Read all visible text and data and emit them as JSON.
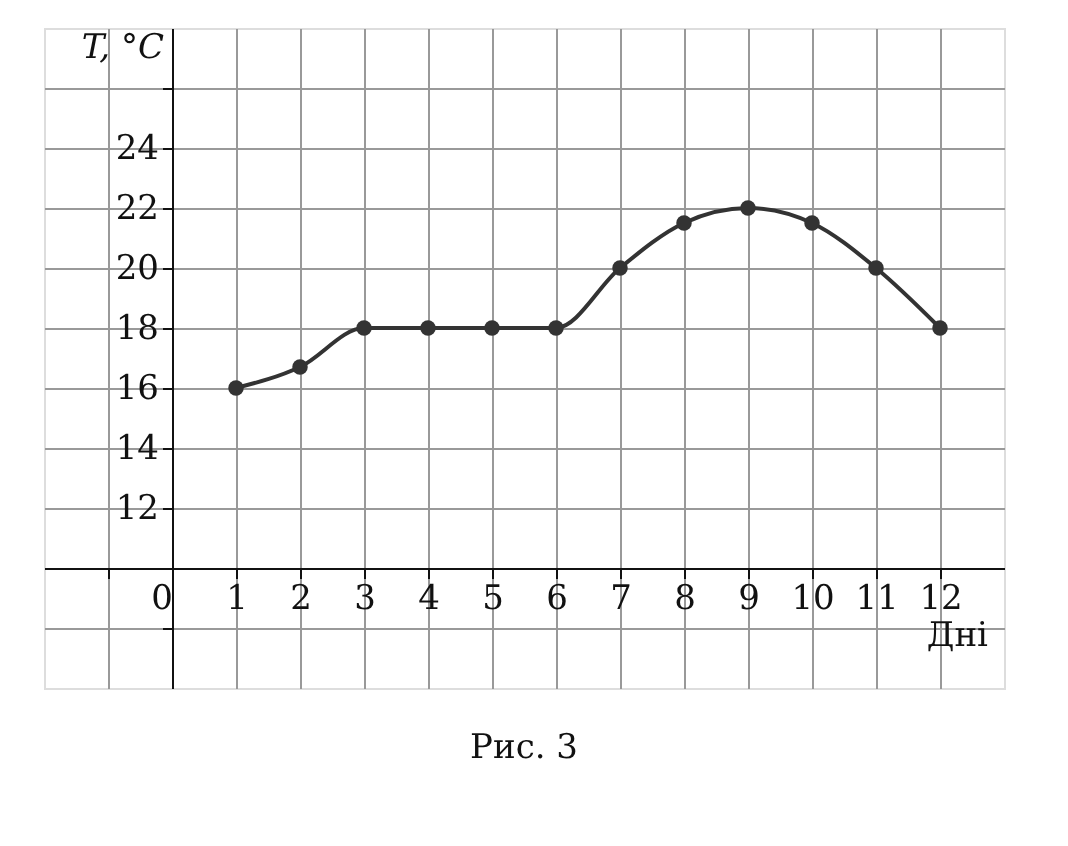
{
  "chart_data": {
    "type": "line",
    "xlabel": "Дні",
    "ylabel": "T, °C",
    "annotations": [
      "Рис. 3"
    ],
    "x": [
      1,
      2,
      3,
      4,
      5,
      6,
      7,
      8,
      9,
      10,
      11,
      12
    ],
    "series": [
      {
        "color": "#333333",
        "values": [
          16,
          16.7,
          18,
          18,
          18,
          18,
          20,
          21.5,
          22,
          21.5,
          20,
          18
        ]
      }
    ],
    "xlim": [
      -2,
      13
    ],
    "ylim": [
      6,
      28
    ],
    "xticks": [
      {
        "value": -1,
        "label": null
      },
      0,
      1,
      2,
      3,
      4,
      5,
      6,
      7,
      8,
      9,
      10,
      11,
      12
    ],
    "yticks": [
      {
        "value": 8,
        "label": null
      },
      {
        "value": 10,
        "label": null
      },
      12,
      14,
      16,
      18,
      20,
      22,
      24,
      {
        "value": 26,
        "label": null
      }
    ],
    "grid": true,
    "marker": "circle",
    "line_style": "solid"
  }
}
